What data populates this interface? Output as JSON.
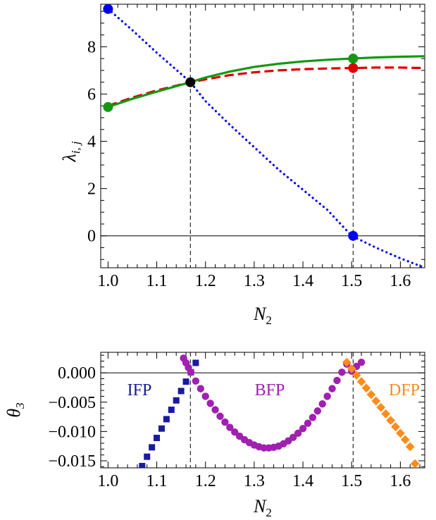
{
  "chart_data": [
    {
      "type": "line",
      "xlabel": "N",
      "xlabel_sub": "2",
      "ylabel": "λ",
      "ylabel_sub": "i, j",
      "xlim": [
        0.985,
        1.65
      ],
      "ylim": [
        -1.35,
        9.8
      ],
      "xticks": [
        1.0,
        1.1,
        1.2,
        1.3,
        1.4,
        1.5,
        1.6
      ],
      "xtick_labels": [
        "1.0",
        "1.1",
        "1.2",
        "1.3",
        "1.4",
        "1.5",
        "1.6"
      ],
      "yticks": [
        0,
        2,
        4,
        6,
        8
      ],
      "ytick_labels": [
        "0",
        "2",
        "4",
        "6",
        "8"
      ],
      "vlines": [
        1.169,
        1.503
      ],
      "hline": 0,
      "series": [
        {
          "style": "dotted",
          "color": "#0000ee",
          "x": [
            1.0,
            1.05,
            1.1,
            1.15,
            1.169,
            1.2,
            1.25,
            1.3,
            1.35,
            1.4,
            1.45,
            1.5,
            1.55,
            1.6,
            1.65
          ],
          "y": [
            9.6,
            8.7,
            7.75,
            6.85,
            6.5,
            5.7,
            4.7,
            3.75,
            2.8,
            1.95,
            1.1,
            0.0,
            -0.5,
            -0.95,
            -1.35
          ]
        },
        {
          "style": "dashed",
          "color": "#dd0000",
          "x": [
            1.0,
            1.05,
            1.1,
            1.169,
            1.2,
            1.25,
            1.3,
            1.35,
            1.4,
            1.45,
            1.5,
            1.55,
            1.6,
            1.65
          ],
          "y": [
            5.5,
            5.85,
            6.15,
            6.5,
            6.62,
            6.8,
            6.92,
            7.0,
            7.05,
            7.08,
            7.1,
            7.12,
            7.12,
            7.1
          ]
        },
        {
          "style": "solid",
          "color": "#119911",
          "x": [
            1.0,
            1.05,
            1.1,
            1.169,
            1.2,
            1.25,
            1.3,
            1.35,
            1.4,
            1.45,
            1.5,
            1.55,
            1.6,
            1.65
          ],
          "y": [
            5.45,
            5.8,
            6.1,
            6.5,
            6.7,
            6.95,
            7.15,
            7.28,
            7.38,
            7.45,
            7.5,
            7.55,
            7.58,
            7.6
          ]
        }
      ],
      "points": [
        {
          "x": 1.0,
          "y": 9.6,
          "color": "#0000ee"
        },
        {
          "x": 1.0,
          "y": 5.45,
          "color": "#119911"
        },
        {
          "x": 1.169,
          "y": 6.5,
          "color": "#000000"
        },
        {
          "x": 1.503,
          "y": 7.5,
          "color": "#119911"
        },
        {
          "x": 1.503,
          "y": 7.1,
          "color": "#dd0000"
        },
        {
          "x": 1.503,
          "y": 0.0,
          "color": "#0000ee"
        }
      ]
    },
    {
      "type": "scatter",
      "xlabel": "N",
      "xlabel_sub": "2",
      "ylabel": "θ",
      "ylabel_sub": "3",
      "xlim": [
        0.985,
        1.65
      ],
      "ylim": [
        -0.0162,
        0.0035
      ],
      "xticks": [
        1.0,
        1.1,
        1.2,
        1.3,
        1.4,
        1.5,
        1.6
      ],
      "xtick_labels": [
        "1.0",
        "1.1",
        "1.2",
        "1.3",
        "1.4",
        "1.5",
        "1.6"
      ],
      "yticks": [
        0.0,
        -0.005,
        -0.01,
        -0.015
      ],
      "ytick_labels": [
        "0.000",
        "−0.005",
        "−0.010",
        "−0.015"
      ],
      "vlines": [
        1.169,
        1.503
      ],
      "hline": 0,
      "region_labels": [
        "IFP",
        "BFP",
        "DFP"
      ],
      "series": [
        {
          "marker": "square",
          "color": "#1a1aa0",
          "x": [
            1.07,
            1.08,
            1.09,
            1.1,
            1.11,
            1.12,
            1.13,
            1.14,
            1.15,
            1.16,
            1.17,
            1.18
          ],
          "y": [
            -0.0159,
            -0.0143,
            -0.0127,
            -0.0111,
            -0.0095,
            -0.0079,
            -0.0063,
            -0.0047,
            -0.0031,
            -0.0015,
            0.0001,
            0.0017
          ]
        },
        {
          "marker": "circle",
          "color": "#a020b0",
          "x": [
            1.155,
            1.16,
            1.165,
            1.17,
            1.18,
            1.19,
            1.2,
            1.21,
            1.22,
            1.23,
            1.24,
            1.25,
            1.26,
            1.27,
            1.28,
            1.29,
            1.3,
            1.31,
            1.32,
            1.33,
            1.34,
            1.35,
            1.36,
            1.37,
            1.38,
            1.39,
            1.4,
            1.41,
            1.42,
            1.43,
            1.44,
            1.45,
            1.46,
            1.47,
            1.48,
            1.49,
            1.5,
            1.51,
            1.52
          ],
          "y": [
            0.0025,
            0.0017,
            0.0009,
            0.0001,
            -0.0014,
            -0.0027,
            -0.004,
            -0.0052,
            -0.0063,
            -0.0074,
            -0.0084,
            -0.0093,
            -0.0101,
            -0.0108,
            -0.0114,
            -0.0119,
            -0.0123,
            -0.0126,
            -0.0128,
            -0.0128,
            -0.0127,
            -0.0125,
            -0.0121,
            -0.0116,
            -0.011,
            -0.0103,
            -0.0095,
            -0.0086,
            -0.0076,
            -0.0065,
            -0.0053,
            -0.004,
            -0.0027,
            -0.0013,
            0.0001,
            0.0015,
            0.0003,
            0.0011,
            0.0018
          ]
        },
        {
          "marker": "diamond",
          "color": "#ff8c1a",
          "x": [
            1.49,
            1.5,
            1.51,
            1.52,
            1.53,
            1.54,
            1.55,
            1.56,
            1.57,
            1.58,
            1.59,
            1.6,
            1.61,
            1.62,
            1.63
          ],
          "y": [
            0.0018,
            0.0007,
            -0.0004,
            -0.0015,
            -0.0026,
            -0.0037,
            -0.0048,
            -0.0059,
            -0.007,
            -0.0081,
            -0.0092,
            -0.0103,
            -0.0114,
            -0.0126,
            -0.0155
          ]
        }
      ]
    }
  ]
}
